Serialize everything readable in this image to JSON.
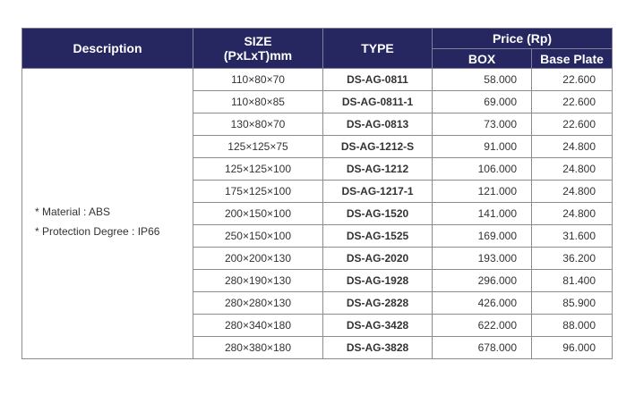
{
  "headers": {
    "description": "Description",
    "size_line1": "SIZE",
    "size_line2": "(PxLxT)mm",
    "type": "TYPE",
    "price": "Price (Rp)",
    "box": "BOX",
    "base_plate": "Base Plate"
  },
  "description": {
    "material": "* Material : ABS",
    "protection": "* Protection Degree : IP66"
  },
  "rows": [
    {
      "size": "110×80×70",
      "type": "DS-AG-0811",
      "box": "58.000",
      "base_plate": "22.600"
    },
    {
      "size": "110×80×85",
      "type": "DS-AG-0811-1",
      "box": "69.000",
      "base_plate": "22.600"
    },
    {
      "size": "130×80×70",
      "type": "DS-AG-0813",
      "box": "73.000",
      "base_plate": "22.600"
    },
    {
      "size": "125×125×75",
      "type": "DS-AG-1212-S",
      "box": "91.000",
      "base_plate": "24.800"
    },
    {
      "size": "125×125×100",
      "type": "DS-AG-1212",
      "box": "106.000",
      "base_plate": "24.800"
    },
    {
      "size": "175×125×100",
      "type": "DS-AG-1217-1",
      "box": "121.000",
      "base_plate": "24.800"
    },
    {
      "size": "200×150×100",
      "type": "DS-AG-1520",
      "box": "141.000",
      "base_plate": "24.800"
    },
    {
      "size": "250×150×100",
      "type": "DS-AG-1525",
      "box": "169.000",
      "base_plate": "31.600"
    },
    {
      "size": "200×200×130",
      "type": "DS-AG-2020",
      "box": "193.000",
      "base_plate": "36.200"
    },
    {
      "size": "280×190×130",
      "type": "DS-AG-1928",
      "box": "296.000",
      "base_plate": "81.400"
    },
    {
      "size": "280×280×130",
      "type": "DS-AG-2828",
      "box": "426.000",
      "base_plate": "85.900"
    },
    {
      "size": "280×340×180",
      "type": "DS-AG-3428",
      "box": "622.000",
      "base_plate": "88.000"
    },
    {
      "size": "280×380×180",
      "type": "DS-AG-3828",
      "box": "678.000",
      "base_plate": "96.000"
    }
  ],
  "colors": {
    "header_bg": "#262760",
    "header_text": "#ffffff",
    "border": "#8c8c8c"
  }
}
